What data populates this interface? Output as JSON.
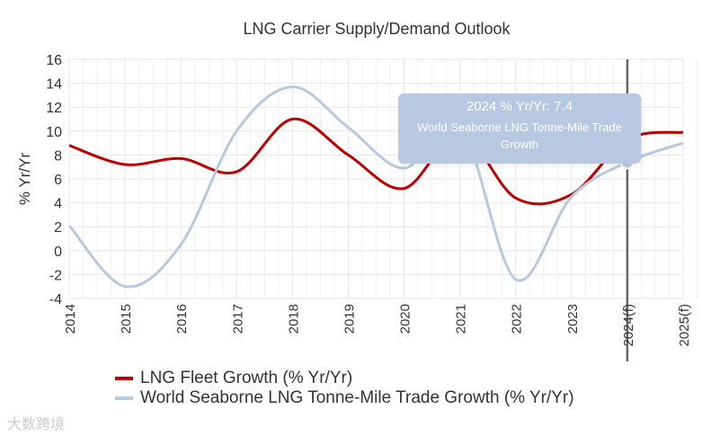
{
  "chart_data": {
    "type": "line",
    "title": "LNG Carrier Supply/Demand Outlook",
    "xlabel": "",
    "ylabel": "% Yr/Yr",
    "ylim": [
      -4,
      16
    ],
    "yticks": [
      -4,
      -2,
      0,
      2,
      4,
      6,
      8,
      10,
      12,
      14,
      16
    ],
    "categories": [
      "2014",
      "2015",
      "2016",
      "2017",
      "2018",
      "2019",
      "2020",
      "2021",
      "2022",
      "2023",
      "2024(f)",
      "2025(f)"
    ],
    "series": [
      {
        "name": "LNG Fleet Growth (% Yr/Yr)",
        "color": "#c00000",
        "values": [
          8.8,
          7.2,
          7.7,
          6.6,
          11.0,
          8.0,
          5.2,
          9.8,
          4.4,
          4.7,
          9.3,
          9.9
        ]
      },
      {
        "name": "World Seaborne LNG Tonne-Mile Trade Growth (% Yr/Yr)",
        "color": "#b7c9e0",
        "values": [
          2.1,
          -3.0,
          0.5,
          10.0,
          13.7,
          10.3,
          6.9,
          10.5,
          -2.4,
          4.5,
          7.4,
          9.0
        ]
      }
    ],
    "grid": true,
    "legend": "bottom-left",
    "highlight_index": 10
  },
  "tooltip": {
    "title": "2024 % Yr/Yr: 7.4",
    "series": "World Seaborne LNG Tonne-Mile Trade Growth"
  },
  "watermark": "大数跨境"
}
